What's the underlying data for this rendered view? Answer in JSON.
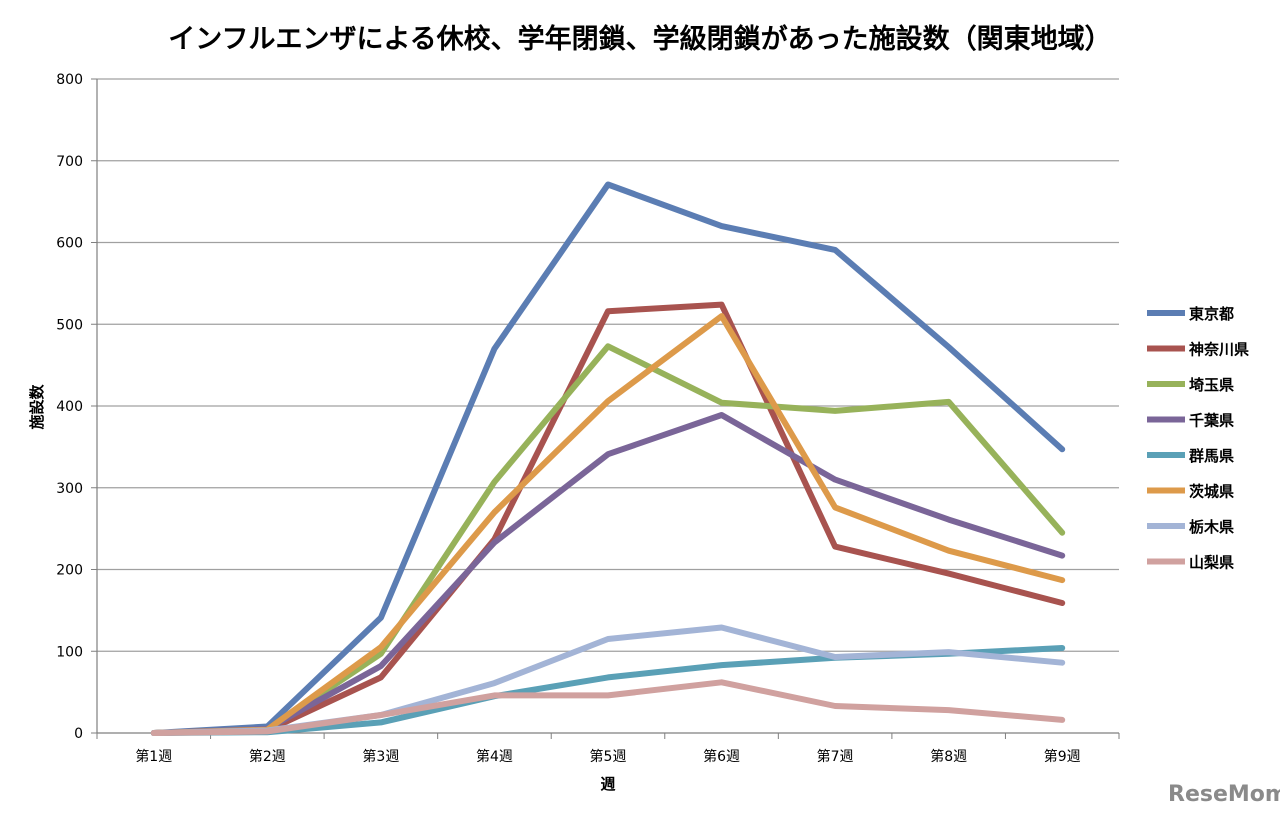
{
  "chart_data": {
    "type": "line",
    "title": "インフルエンザによる休校、学年閉鎖、学級閉鎖があった施設数（関東地域）",
    "xlabel": "週",
    "ylabel": "施設数",
    "categories": [
      "第1週",
      "第2週",
      "第3週",
      "第4週",
      "第5週",
      "第6週",
      "第7週",
      "第8週",
      "第9週"
    ],
    "ylim": [
      0,
      800
    ],
    "yticks": [
      0,
      100,
      200,
      300,
      400,
      500,
      600,
      700,
      800
    ],
    "grid": true,
    "legend_position": "right",
    "series": [
      {
        "name": "東京都",
        "color": "#5b7db3",
        "values": [
          0,
          8,
          141,
          470,
          671,
          620,
          591,
          472,
          347
        ]
      },
      {
        "name": "神奈川県",
        "color": "#a8534f",
        "values": [
          0,
          3,
          68,
          237,
          516,
          524,
          228,
          195,
          159
        ]
      },
      {
        "name": "埼玉県",
        "color": "#97b25a",
        "values": [
          0,
          4,
          97,
          307,
          473,
          404,
          394,
          405,
          245
        ]
      },
      {
        "name": "千葉県",
        "color": "#7a6598",
        "values": [
          0,
          5,
          82,
          233,
          341,
          389,
          310,
          261,
          217
        ]
      },
      {
        "name": "群馬県",
        "color": "#5aa0b6",
        "values": [
          0,
          1,
          13,
          45,
          68,
          83,
          92,
          97,
          104
        ]
      },
      {
        "name": "茨城県",
        "color": "#dd9a4a",
        "values": [
          0,
          4,
          105,
          270,
          406,
          510,
          276,
          223,
          187
        ]
      },
      {
        "name": "栃木県",
        "color": "#a3b4d6",
        "values": [
          0,
          3,
          22,
          61,
          115,
          129,
          93,
          99,
          86
        ]
      },
      {
        "name": "山梨県",
        "color": "#d0a19f",
        "values": [
          0,
          2,
          22,
          46,
          46,
          62,
          33,
          28,
          16
        ]
      }
    ]
  },
  "watermark": {
    "text": "ReseMom",
    "color": "#8a8a8a"
  }
}
